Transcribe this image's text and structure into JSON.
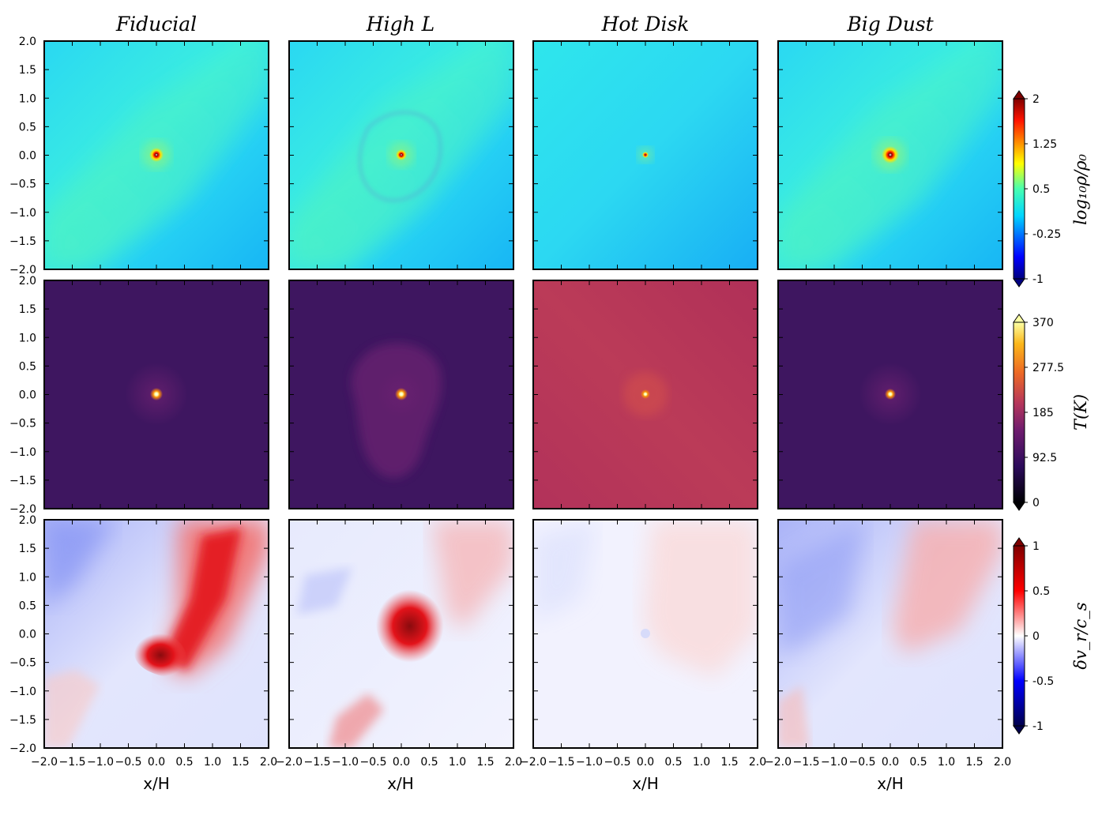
{
  "figure": {
    "columns": [
      "Fiducial",
      "High L",
      "Hot Disk",
      "Big Dust"
    ],
    "xlabel": "x/H"
  },
  "chart_data": {
    "type": "heatmap",
    "xlabel": "x/H",
    "ylabel": "",
    "xlim": [
      -2.0,
      2.0
    ],
    "ylim": [
      -2.0,
      2.0
    ],
    "x_tick_labels": [
      "−2.0",
      "−1.5",
      "−1.0",
      "−0.5",
      "0.0",
      "0.5",
      "1.0",
      "1.5",
      "2.0"
    ],
    "y_tick_labels": [
      "2.0",
      "1.5",
      "1.0",
      "0.5",
      "0.0",
      "−0.5",
      "−1.0",
      "−1.5",
      "−2.0"
    ],
    "columns": [
      "Fiducial",
      "High L",
      "Hot Disk",
      "Big Dust"
    ],
    "rows": [
      {
        "quantity": "log10 rho/rho0",
        "colorbar_label": "log₁₀ρ/ρ₀",
        "colormap": "jet",
        "range": [
          -1,
          2
        ],
        "colorbar_ticks": [
          "2",
          "1.25",
          "0.5",
          "-0.25",
          "-1"
        ],
        "colors": {
          "background": "#2fe4f0",
          "center": "#b00000"
        }
      },
      {
        "quantity": "T(K)",
        "colorbar_label": "T(K)",
        "colormap": "inferno",
        "range": [
          0,
          370
        ],
        "colorbar_ticks": [
          "370",
          "277.5",
          "185",
          "92.5",
          "0"
        ],
        "colors": {
          "cool": "#3d1560",
          "hot": "#b7375a",
          "center": "#fcffa4"
        }
      },
      {
        "quantity": "delta v_r / c_s",
        "colorbar_label": "δv_r/c_s",
        "colormap": "seismic",
        "range": [
          -1,
          1
        ],
        "colorbar_ticks": [
          "1",
          "0.5",
          "0",
          "-0.5",
          "-1"
        ],
        "colors": {
          "positive": "#e8141a",
          "negative": "#5d6ff5",
          "neutral": "#ffffff"
        }
      }
    ]
  }
}
